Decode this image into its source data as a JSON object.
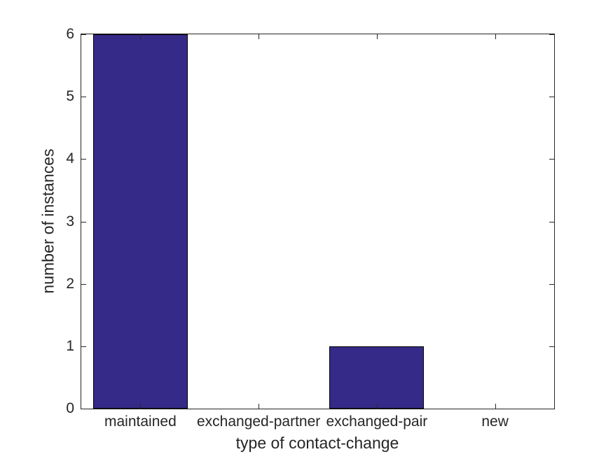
{
  "chart_data": {
    "type": "bar",
    "title": "",
    "categories": [
      "maintained",
      "exchanged-partner",
      "exchanged-pair",
      "new"
    ],
    "values": [
      6,
      0,
      1,
      0
    ],
    "xlabel": "type of contact-change",
    "ylabel": "number of instances",
    "ylim": [
      0,
      6
    ],
    "yticks": [
      0,
      1,
      2,
      3,
      4,
      5,
      6
    ],
    "bar_width_fraction": 0.8,
    "grid": false,
    "legend": null,
    "colors": {
      "bar_fill": "#352A87",
      "bar_edge": "#000000",
      "axis": "#262626",
      "text": "#262626",
      "background": "#FFFFFF"
    }
  }
}
